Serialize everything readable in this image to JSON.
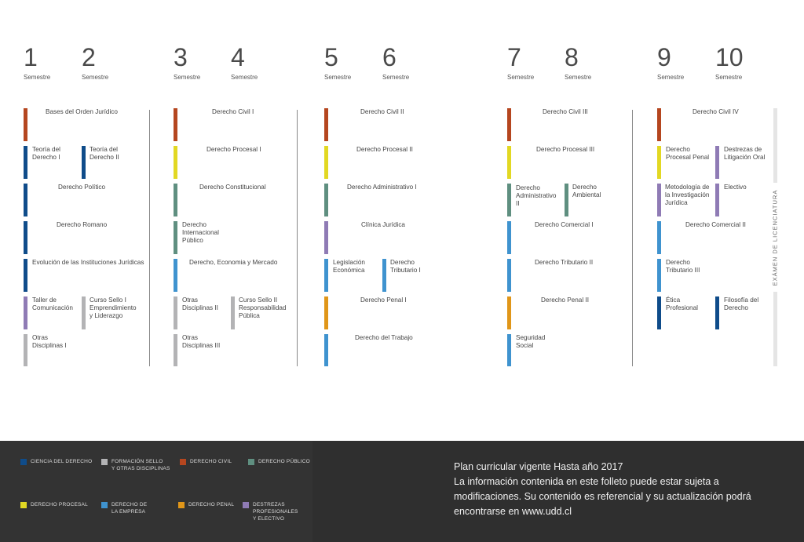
{
  "semester_label": "Semestre",
  "semesters": [
    {
      "number": "1"
    },
    {
      "number": "2"
    },
    {
      "number": "3"
    },
    {
      "number": "4"
    },
    {
      "number": "5"
    },
    {
      "number": "6"
    },
    {
      "number": "7"
    },
    {
      "number": "8"
    },
    {
      "number": "9"
    },
    {
      "number": "10"
    }
  ],
  "colors": {
    "ciencia_del_derecho": "#0f4c8a",
    "formacion_sello": "#b3b3b5",
    "derecho_civil": "#b5461f",
    "derecho_publico": "#5f8f80",
    "derecho_procesal": "#e2d823",
    "derecho_empresa": "#3f93cf",
    "derecho_penal": "#e09619",
    "destrezas": "#8f7bb5"
  },
  "courses": {
    "bases_orden_juridico": "Bases del Orden Jurídico",
    "teoria_derecho_1": "Teoría del\nDerecho I",
    "teoria_derecho_2": "Teoría del\nDerecho II",
    "derecho_politico": "Derecho Político",
    "derecho_romano": "Derecho Romano",
    "evolucion_instituciones": "Evolución de las Instituciones Jurídicas",
    "taller_comunicacion": "Taller de\nComunicación",
    "curso_sello_1": "Curso Sello I\nEmprendimiento\ny Liderazgo",
    "otras_disciplinas_1": "Otras\nDisciplinas I",
    "derecho_civil_1": "Derecho Civil I",
    "derecho_procesal_1": "Derecho Procesal I",
    "derecho_constitucional": "Derecho Constitucional",
    "derecho_internacional": "Derecho\nInternacional\nPúblico",
    "derecho_economia": "Derecho, Economia y Mercado",
    "otras_disciplinas_2": "Otras\nDisciplinas II",
    "curso_sello_2": "Curso Sello II\nResponsabilidad\nPública",
    "otras_disciplinas_3": "Otras\nDisciplinas III",
    "derecho_civil_2": "Derecho Civil II",
    "derecho_procesal_2": "Derecho Procesal II",
    "derecho_administrativo_1": "Derecho Administrativo I",
    "clinica_juridica": "Clínica Jurídica",
    "legislacion_economica": "Legislación\nEconómica",
    "derecho_tributario_1": "Derecho\nTributario I",
    "derecho_penal_1": "Derecho Penal I",
    "derecho_trabajo": "Derecho del Trabajo",
    "derecho_civil_3": "Derecho Civil III",
    "derecho_procesal_3": "Derecho Procesal III",
    "derecho_administrativo_2": "Derecho\nAdministrativo\nII",
    "derecho_ambiental": "Derecho\nAmbiental",
    "derecho_comercial_1": "Derecho Comercial I",
    "derecho_tributario_2": "Derecho Tributario II",
    "derecho_penal_2": "Derecho Penal II",
    "seguridad_social": "Seguridad\nSocial",
    "derecho_civil_4": "Derecho Civil IV",
    "derecho_procesal_penal": "Derecho\nProcesal Penal",
    "destrezas_litigacion": "Destrezas de\nLitigación Oral",
    "metodologia_investigacion": "Metodología de\nla Investigación\nJurídica",
    "electivo": "Electivo",
    "derecho_comercial_2": "Derecho Comercial II",
    "derecho_tributario_3": "Derecho\nTributario III",
    "etica_profesional": "Ética\nProfesional",
    "filosofia_derecho": "Filosofía del\nDerecho"
  },
  "exam_label": "EXÁMEN DE LICENCIATURA",
  "legend": {
    "ciencia_del_derecho": "CIENCIA DEL DERECHO",
    "formacion_sello": "FORMACIÓN SELLO\nY OTRAS DISCIPLINAS",
    "derecho_civil": "DERECHO CIVIL",
    "derecho_publico": "DERECHO PÚBLICO",
    "derecho_procesal": "DERECHO PROCESAL",
    "derecho_empresa": "DERECHO DE\nLA EMPRESA",
    "derecho_penal": "DERECHO PENAL",
    "destrezas": "DESTREZAS\nPROFESIONALES\nY ELECTIVO"
  },
  "footer_note": "Plan curricular vigente Hasta año 2017\nLa información contenida en este folleto puede estar sujeta a\nmodificaciones. Su contenido es referencial y su actualización podrá\nencontrarse en www.udd.cl"
}
